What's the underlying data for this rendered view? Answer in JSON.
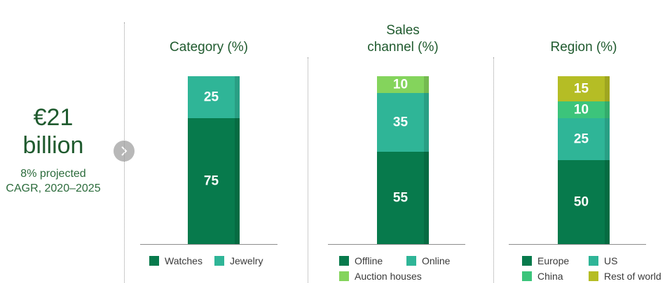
{
  "summary": {
    "total_line1": "€21",
    "total_line2": "billion",
    "cagr_line1": "8% projected",
    "cagr_line2": "CAGR, 2020–2025"
  },
  "icons": {
    "next": "chevron-right-icon"
  },
  "chart_data": [
    {
      "type": "bar",
      "stacked": true,
      "title": "Category (%)",
      "categories": [
        ""
      ],
      "ylim": [
        0,
        100
      ],
      "series": [
        {
          "name": "Watches",
          "values": [
            75
          ],
          "color": "#077a4c"
        },
        {
          "name": "Jewelry",
          "values": [
            25
          ],
          "color": "#2fb597"
        }
      ]
    },
    {
      "type": "bar",
      "stacked": true,
      "title": "Sales channel (%)",
      "title_lines": [
        "Sales",
        "channel (%)"
      ],
      "categories": [
        ""
      ],
      "ylim": [
        0,
        100
      ],
      "series": [
        {
          "name": "Offline",
          "values": [
            55
          ],
          "color": "#077a4c"
        },
        {
          "name": "Online",
          "values": [
            35
          ],
          "color": "#2fb597"
        },
        {
          "name": "Auction houses",
          "values": [
            10
          ],
          "color": "#84d45c"
        }
      ]
    },
    {
      "type": "bar",
      "stacked": true,
      "title": "Region (%)",
      "categories": [
        ""
      ],
      "ylim": [
        0,
        100
      ],
      "series": [
        {
          "name": "Europe",
          "values": [
            50
          ],
          "color": "#077a4c"
        },
        {
          "name": "US",
          "values": [
            25
          ],
          "color": "#2fb597"
        },
        {
          "name": "China",
          "values": [
            10
          ],
          "color": "#3cc47b"
        },
        {
          "name": "Rest of world",
          "values": [
            15
          ],
          "color": "#b5bd25"
        }
      ]
    }
  ]
}
